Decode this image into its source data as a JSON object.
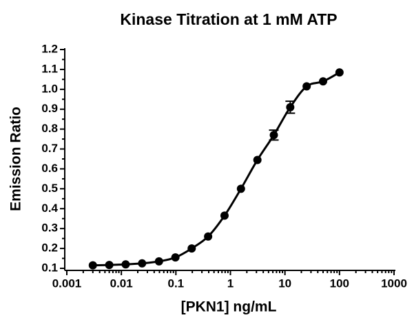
{
  "chart_data": {
    "type": "scatter",
    "title": "Kinase Titration at 1 mM ATP",
    "x_label": "[PKN1] ng/mL",
    "y_label": "Emission Ratio",
    "log_x": true,
    "color": "#000000",
    "series": [
      {
        "x": [
          0.003,
          0.006,
          0.012,
          0.024,
          0.049,
          0.098,
          0.195,
          0.39,
          0.78,
          1.56,
          3.125,
          6.25,
          12.5,
          25,
          50,
          100
        ],
        "values": [
          0.115,
          0.117,
          0.12,
          0.125,
          0.135,
          0.155,
          0.2,
          0.26,
          0.365,
          0.5,
          0.645,
          0.77,
          0.91,
          1.015,
          1.04,
          1.085
        ],
        "errors": [
          null,
          null,
          null,
          null,
          null,
          null,
          null,
          null,
          null,
          null,
          null,
          0.025,
          0.03,
          null,
          null,
          null
        ]
      }
    ],
    "xlim": [
      0.001,
      1000
    ],
    "xticks": [
      0.001,
      0.01,
      0.1,
      1,
      10,
      100,
      1000
    ],
    "ylim": [
      0.1,
      1.2
    ],
    "yticks": [
      0.1,
      0.2,
      0.3,
      0.4,
      0.5,
      0.6,
      0.7,
      0.8,
      0.9,
      {
        "value": 1,
        "label": "1.0"
      },
      1.1,
      1.2
    ]
  }
}
